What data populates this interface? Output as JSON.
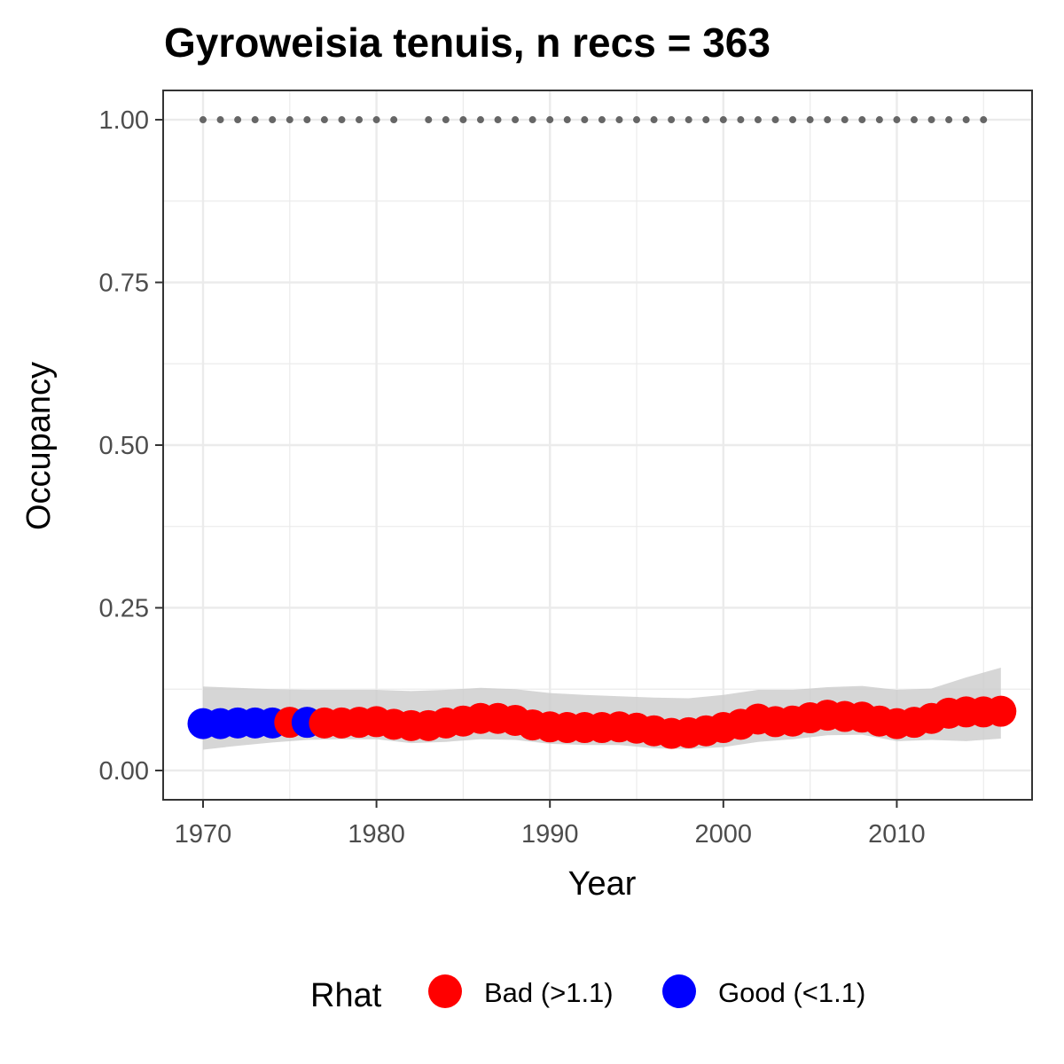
{
  "chart_data": {
    "type": "scatter",
    "title": "Gyroweisia tenuis, n recs = 363",
    "xlabel": "Year",
    "ylabel": "Occupancy",
    "xlim": [
      1967.7,
      2017.8
    ],
    "ylim": [
      -0.045,
      1.045
    ],
    "x_ticks": [
      1970,
      1980,
      1990,
      2000,
      2010
    ],
    "x_tick_labels": [
      "1970",
      "1980",
      "1990",
      "2000",
      "2010"
    ],
    "y_ticks": [
      0.0,
      0.25,
      0.5,
      0.75,
      1.0
    ],
    "y_tick_labels": [
      "0.00",
      "0.25",
      "0.50",
      "0.75",
      "1.00"
    ],
    "grid": true,
    "legend": {
      "title": "Rhat",
      "position": "bottom",
      "entries": [
        {
          "label": "Bad (>1.1)",
          "color": "#ff0000"
        },
        {
          "label": "Good (<1.1)",
          "color": "#0000ff"
        }
      ]
    },
    "colors": {
      "bad": "#ff0000",
      "good": "#0000ff",
      "records": "#666666",
      "ribbon": "#cccccc"
    },
    "occupancy": [
      {
        "year": 1970,
        "value": 0.072,
        "rhat": "good"
      },
      {
        "year": 1971,
        "value": 0.072,
        "rhat": "good"
      },
      {
        "year": 1972,
        "value": 0.073,
        "rhat": "good"
      },
      {
        "year": 1973,
        "value": 0.073,
        "rhat": "good"
      },
      {
        "year": 1974,
        "value": 0.073,
        "rhat": "good"
      },
      {
        "year": 1975,
        "value": 0.074,
        "rhat": "bad"
      },
      {
        "year": 1976,
        "value": 0.074,
        "rhat": "good"
      },
      {
        "year": 1977,
        "value": 0.073,
        "rhat": "bad"
      },
      {
        "year": 1978,
        "value": 0.073,
        "rhat": "bad"
      },
      {
        "year": 1979,
        "value": 0.074,
        "rhat": "bad"
      },
      {
        "year": 1980,
        "value": 0.075,
        "rhat": "bad"
      },
      {
        "year": 1981,
        "value": 0.071,
        "rhat": "bad"
      },
      {
        "year": 1982,
        "value": 0.069,
        "rhat": "bad"
      },
      {
        "year": 1983,
        "value": 0.069,
        "rhat": "bad"
      },
      {
        "year": 1984,
        "value": 0.073,
        "rhat": "bad"
      },
      {
        "year": 1985,
        "value": 0.076,
        "rhat": "bad"
      },
      {
        "year": 1986,
        "value": 0.08,
        "rhat": "bad"
      },
      {
        "year": 1987,
        "value": 0.08,
        "rhat": "bad"
      },
      {
        "year": 1988,
        "value": 0.077,
        "rhat": "bad"
      },
      {
        "year": 1989,
        "value": 0.07,
        "rhat": "bad"
      },
      {
        "year": 1990,
        "value": 0.067,
        "rhat": "bad"
      },
      {
        "year": 1991,
        "value": 0.066,
        "rhat": "bad"
      },
      {
        "year": 1992,
        "value": 0.066,
        "rhat": "bad"
      },
      {
        "year": 1993,
        "value": 0.066,
        "rhat": "bad"
      },
      {
        "year": 1994,
        "value": 0.067,
        "rhat": "bad"
      },
      {
        "year": 1995,
        "value": 0.065,
        "rhat": "bad"
      },
      {
        "year": 1996,
        "value": 0.061,
        "rhat": "bad"
      },
      {
        "year": 1997,
        "value": 0.057,
        "rhat": "bad"
      },
      {
        "year": 1998,
        "value": 0.058,
        "rhat": "bad"
      },
      {
        "year": 1999,
        "value": 0.061,
        "rhat": "bad"
      },
      {
        "year": 2000,
        "value": 0.066,
        "rhat": "bad"
      },
      {
        "year": 2001,
        "value": 0.071,
        "rhat": "bad"
      },
      {
        "year": 2002,
        "value": 0.079,
        "rhat": "bad"
      },
      {
        "year": 2003,
        "value": 0.075,
        "rhat": "bad"
      },
      {
        "year": 2004,
        "value": 0.076,
        "rhat": "bad"
      },
      {
        "year": 2005,
        "value": 0.081,
        "rhat": "bad"
      },
      {
        "year": 2006,
        "value": 0.085,
        "rhat": "bad"
      },
      {
        "year": 2007,
        "value": 0.083,
        "rhat": "bad"
      },
      {
        "year": 2008,
        "value": 0.082,
        "rhat": "bad"
      },
      {
        "year": 2009,
        "value": 0.076,
        "rhat": "bad"
      },
      {
        "year": 2010,
        "value": 0.072,
        "rhat": "bad"
      },
      {
        "year": 2011,
        "value": 0.074,
        "rhat": "bad"
      },
      {
        "year": 2012,
        "value": 0.08,
        "rhat": "bad"
      },
      {
        "year": 2013,
        "value": 0.088,
        "rhat": "bad"
      },
      {
        "year": 2014,
        "value": 0.09,
        "rhat": "bad"
      },
      {
        "year": 2015,
        "value": 0.09,
        "rhat": "bad"
      },
      {
        "year": 2016,
        "value": 0.091,
        "rhat": "bad"
      }
    ],
    "ribbon": {
      "years": [
        1970,
        1972,
        1974,
        1976,
        1978,
        1980,
        1982,
        1984,
        1986,
        1988,
        1990,
        1992,
        1994,
        1996,
        1998,
        2000,
        2002,
        2004,
        2006,
        2008,
        2010,
        2012,
        2014,
        2016
      ],
      "upper": [
        0.129,
        0.127,
        0.125,
        0.124,
        0.124,
        0.124,
        0.122,
        0.124,
        0.127,
        0.125,
        0.119,
        0.116,
        0.114,
        0.112,
        0.111,
        0.116,
        0.124,
        0.124,
        0.128,
        0.13,
        0.124,
        0.126,
        0.143,
        0.158
      ],
      "lower": [
        0.032,
        0.038,
        0.043,
        0.047,
        0.048,
        0.048,
        0.042,
        0.044,
        0.048,
        0.047,
        0.041,
        0.039,
        0.039,
        0.034,
        0.033,
        0.036,
        0.044,
        0.048,
        0.054,
        0.055,
        0.045,
        0.047,
        0.045,
        0.049
      ]
    },
    "records": {
      "value": 1.0,
      "years": [
        1970,
        1971,
        1972,
        1973,
        1974,
        1975,
        1976,
        1977,
        1978,
        1979,
        1980,
        1981,
        1983,
        1984,
        1985,
        1986,
        1987,
        1988,
        1989,
        1990,
        1991,
        1992,
        1993,
        1994,
        1995,
        1996,
        1997,
        1998,
        1999,
        2000,
        2001,
        2002,
        2003,
        2004,
        2005,
        2006,
        2007,
        2008,
        2009,
        2010,
        2011,
        2012,
        2013,
        2014,
        2015
      ]
    }
  }
}
